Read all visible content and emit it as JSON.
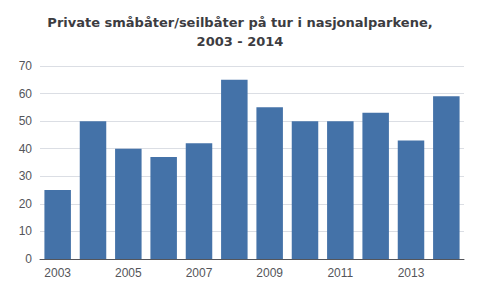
{
  "chart_data": {
    "type": "bar",
    "title": "Private småbåter/seilbåter på tur i nasjonalparkene,\n2003 - 2014",
    "categories": [
      "2003",
      null,
      "2005",
      null,
      "2007",
      null,
      "2009",
      null,
      "2011",
      null,
      "2013",
      null
    ],
    "values": [
      25,
      50,
      40,
      37,
      42,
      65,
      55,
      50,
      50,
      53,
      43,
      59
    ],
    "color": "#4472a8",
    "ylim": [
      0,
      70
    ],
    "yticks": [
      0,
      10,
      20,
      30,
      40,
      50,
      60,
      70
    ],
    "grid": true
  }
}
